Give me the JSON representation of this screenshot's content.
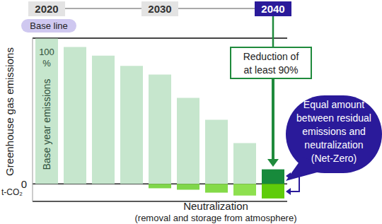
{
  "chart_data": {
    "type": "bar",
    "stacked": true,
    "categories": [
      "2020",
      null,
      null,
      null,
      "2030",
      null,
      null,
      null,
      "2040"
    ],
    "series": [
      {
        "name": "Greenhouse gas emissions",
        "values": [
          100,
          94,
          88,
          81,
          75,
          59,
          44,
          28,
          10
        ],
        "colors": [
          "#c6e6cd",
          "#c6e6cd",
          "#c6e6cd",
          "#c6e6cd",
          "#c6e6cd",
          "#c6e6cd",
          "#c6e6cd",
          "#c6e6cd",
          "#178a3b"
        ]
      },
      {
        "name": "Neutralization",
        "values": [
          null,
          null,
          null,
          null,
          -3,
          -4,
          -6,
          -8,
          -10
        ],
        "colors": [
          null,
          null,
          null,
          null,
          "#7fd64a",
          "#7fd64a",
          "#84da48",
          "#8ee04f",
          "#5fcc0a"
        ]
      }
    ],
    "y_label": "Greenhouse gas emissions",
    "y_unit": "t-CO₂",
    "ylim": [
      -12,
      100
    ],
    "yticks": [
      0
    ],
    "grid": true,
    "annotations": {
      "baseline": "Base line",
      "first_bar_value": "100 %",
      "first_bar_label": "Base year emissions",
      "reduction": [
        "Reduction of",
        "at least 90%"
      ],
      "net_zero": [
        "Equal amount",
        "between residual",
        "emissions and",
        "neutralization",
        "(Net-Zero)"
      ],
      "neutralization": "Neutralization",
      "neutralization_note": "(removal and storage from atmosphere)"
    }
  }
}
